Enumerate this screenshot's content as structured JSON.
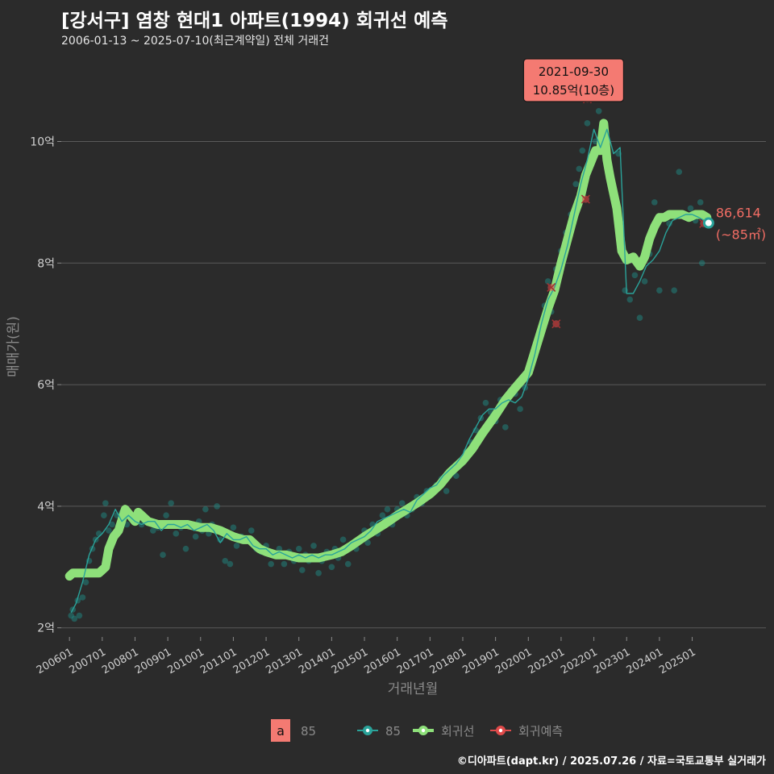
{
  "header": {
    "title": "[강서구] 염창 현대1 아파트(1994) 회귀선 예측",
    "subtitle": "2006-01-13 ~ 2025-07-10(최근계약일) 전체 거래건"
  },
  "footer": {
    "credit": "©디아파트(dapt.kr) / 2025.07.26 / 자료=국토교통부 실거래가"
  },
  "colors": {
    "background": "#2b2b2b",
    "grid": "#5a5a5a",
    "trade_points": "#1f8a84",
    "trade_line": "#2aa39a",
    "regression": "#8ee07a",
    "prediction": "#e04b4b",
    "annotation_fill": "#f47a72",
    "last_label": "#f26d64"
  },
  "chart_data": {
    "type": "line",
    "title": "[강서구] 염창 현대1 아파트(1994) 회귀선 예측",
    "xlabel": "거래년월",
    "ylabel": "매매가(원)",
    "x_range": [
      2005.75,
      2027.25
    ],
    "ylim": [
      1.85,
      11.2
    ],
    "y_ticks": [
      {
        "value": 2,
        "label": "2억"
      },
      {
        "value": 4,
        "label": "4억"
      },
      {
        "value": 6,
        "label": "6억"
      },
      {
        "value": 8,
        "label": "8억"
      },
      {
        "value": 10,
        "label": "10억"
      }
    ],
    "x_ticks": [
      {
        "value": 2006,
        "label": "200601"
      },
      {
        "value": 2007,
        "label": "200701"
      },
      {
        "value": 2008,
        "label": "200801"
      },
      {
        "value": 2009,
        "label": "200901"
      },
      {
        "value": 2010,
        "label": "201001"
      },
      {
        "value": 2011,
        "label": "201101"
      },
      {
        "value": 2012,
        "label": "201201"
      },
      {
        "value": 2013,
        "label": "201301"
      },
      {
        "value": 2014,
        "label": "201401"
      },
      {
        "value": 2015,
        "label": "201501"
      },
      {
        "value": 2016,
        "label": "201601"
      },
      {
        "value": 2017,
        "label": "201701"
      },
      {
        "value": 2018,
        "label": "201801"
      },
      {
        "value": 2019,
        "label": "201901"
      },
      {
        "value": 2020,
        "label": "202001"
      },
      {
        "value": 2021,
        "label": "202101"
      },
      {
        "value": 2022,
        "label": "202201"
      },
      {
        "value": 2023,
        "label": "202301"
      },
      {
        "value": 2024,
        "label": "202401"
      },
      {
        "value": 2025,
        "label": "202501"
      }
    ],
    "series": [
      {
        "name": "85",
        "kind": "trade_line",
        "x": [
          2006.05,
          2006.2,
          2006.4,
          2006.6,
          2006.8,
          2007.0,
          2007.2,
          2007.4,
          2007.6,
          2007.8,
          2008.0,
          2008.2,
          2008.4,
          2008.6,
          2008.8,
          2009.0,
          2009.2,
          2009.4,
          2009.6,
          2009.8,
          2010.0,
          2010.2,
          2010.4,
          2010.6,
          2010.8,
          2011.0,
          2011.2,
          2011.4,
          2011.6,
          2011.8,
          2012.0,
          2012.2,
          2012.4,
          2012.6,
          2012.8,
          2013.0,
          2013.2,
          2013.4,
          2013.6,
          2013.8,
          2014.0,
          2014.2,
          2014.4,
          2014.6,
          2014.8,
          2015.0,
          2015.2,
          2015.4,
          2015.6,
          2015.8,
          2016.0,
          2016.2,
          2016.4,
          2016.6,
          2016.8,
          2017.0,
          2017.2,
          2017.4,
          2017.6,
          2017.8,
          2018.0,
          2018.2,
          2018.4,
          2018.6,
          2018.8,
          2019.0,
          2019.2,
          2019.4,
          2019.6,
          2019.8,
          2020.0,
          2020.2,
          2020.4,
          2020.6,
          2020.8,
          2021.0,
          2021.2,
          2021.4,
          2021.6,
          2021.8,
          2022.0,
          2022.2,
          2022.4,
          2022.6,
          2022.8,
          2023.0,
          2023.2,
          2023.4,
          2023.6,
          2023.8,
          2024.0,
          2024.2,
          2024.4,
          2024.6,
          2024.8,
          2025.0,
          2025.2,
          2025.5
        ],
        "values": [
          2.25,
          2.4,
          2.75,
          3.2,
          3.45,
          3.55,
          3.7,
          3.95,
          3.75,
          3.85,
          3.75,
          3.7,
          3.75,
          3.75,
          3.6,
          3.7,
          3.7,
          3.65,
          3.7,
          3.6,
          3.65,
          3.7,
          3.6,
          3.4,
          3.55,
          3.45,
          3.45,
          3.5,
          3.35,
          3.3,
          3.3,
          3.2,
          3.25,
          3.2,
          3.15,
          3.2,
          3.15,
          3.2,
          3.15,
          3.2,
          3.2,
          3.25,
          3.3,
          3.4,
          3.45,
          3.5,
          3.6,
          3.75,
          3.8,
          3.85,
          3.9,
          3.95,
          3.9,
          4.1,
          4.2,
          4.3,
          4.35,
          4.5,
          4.6,
          4.7,
          4.85,
          5.1,
          5.3,
          5.5,
          5.6,
          5.6,
          5.7,
          5.75,
          5.7,
          5.8,
          6.1,
          6.5,
          7.0,
          7.4,
          7.6,
          7.9,
          8.3,
          8.8,
          9.3,
          9.7,
          10.2,
          9.9,
          10.2,
          9.8,
          9.9,
          7.5,
          7.5,
          7.7,
          7.95,
          8.05,
          8.2,
          8.5,
          8.7,
          8.75,
          8.8,
          8.8,
          8.75,
          8.66
        ]
      },
      {
        "name": "회귀선",
        "kind": "regression",
        "x": [
          2006.0,
          2006.1,
          2006.3,
          2006.6,
          2006.9,
          2007.1,
          2007.2,
          2007.35,
          2007.5,
          2007.7,
          2007.85,
          2008.0,
          2008.1,
          2008.2,
          2008.4,
          2008.7,
          2009.0,
          2009.3,
          2009.6,
          2010.0,
          2010.3,
          2010.6,
          2011.0,
          2011.3,
          2011.5,
          2011.8,
          2012.0,
          2012.3,
          2012.6,
          2013.0,
          2013.3,
          2013.6,
          2014.0,
          2014.3,
          2014.6,
          2015.0,
          2015.3,
          2015.6,
          2016.0,
          2016.3,
          2016.6,
          2017.0,
          2017.3,
          2017.6,
          2018.0,
          2018.3,
          2018.6,
          2019.0,
          2019.3,
          2019.6,
          2020.0,
          2020.2,
          2020.4,
          2020.6,
          2020.8,
          2021.0,
          2021.2,
          2021.4,
          2021.6,
          2021.75,
          2021.9,
          2022.05,
          2022.2,
          2022.3,
          2022.4,
          2022.5,
          2022.7,
          2022.85,
          2023.0,
          2023.2,
          2023.4,
          2023.55,
          2023.7,
          2023.85,
          2024.0,
          2024.15,
          2024.3,
          2024.5,
          2024.7,
          2024.9,
          2025.1,
          2025.3,
          2025.45
        ],
        "values": [
          2.85,
          2.9,
          2.9,
          2.9,
          2.9,
          3.0,
          3.3,
          3.5,
          3.6,
          3.95,
          3.85,
          3.75,
          3.9,
          3.85,
          3.75,
          3.7,
          3.7,
          3.7,
          3.7,
          3.65,
          3.65,
          3.6,
          3.5,
          3.45,
          3.45,
          3.3,
          3.25,
          3.2,
          3.2,
          3.15,
          3.15,
          3.15,
          3.2,
          3.25,
          3.35,
          3.5,
          3.6,
          3.7,
          3.85,
          3.95,
          4.05,
          4.2,
          4.35,
          4.55,
          4.75,
          4.95,
          5.2,
          5.5,
          5.75,
          5.95,
          6.2,
          6.55,
          6.9,
          7.25,
          7.55,
          8.0,
          8.4,
          8.8,
          9.1,
          9.45,
          9.65,
          9.85,
          9.85,
          10.3,
          9.7,
          9.4,
          8.9,
          8.2,
          8.05,
          8.1,
          7.95,
          8.1,
          8.4,
          8.6,
          8.75,
          8.75,
          8.8,
          8.8,
          8.8,
          8.75,
          8.8,
          8.8,
          8.75
        ]
      },
      {
        "name": "85",
        "kind": "trade_points",
        "points": [
          [
            2006.05,
            2.2
          ],
          [
            2006.1,
            2.3
          ],
          [
            2006.15,
            2.15
          ],
          [
            2006.25,
            2.45
          ],
          [
            2006.3,
            2.2
          ],
          [
            2006.4,
            2.5
          ],
          [
            2006.5,
            2.75
          ],
          [
            2006.6,
            3.1
          ],
          [
            2006.7,
            3.3
          ],
          [
            2006.8,
            3.45
          ],
          [
            2006.9,
            3.55
          ],
          [
            2007.05,
            3.85
          ],
          [
            2007.1,
            4.05
          ],
          [
            2007.2,
            3.6
          ],
          [
            2007.3,
            3.7
          ],
          [
            2007.45,
            3.85
          ],
          [
            2007.6,
            3.9
          ],
          [
            2007.75,
            3.7
          ],
          [
            2007.9,
            3.8
          ],
          [
            2008.05,
            3.85
          ],
          [
            2008.2,
            3.7
          ],
          [
            2008.4,
            3.75
          ],
          [
            2008.55,
            3.6
          ],
          [
            2008.7,
            3.65
          ],
          [
            2008.85,
            3.2
          ],
          [
            2008.95,
            3.85
          ],
          [
            2009.1,
            4.05
          ],
          [
            2009.25,
            3.55
          ],
          [
            2009.4,
            3.65
          ],
          [
            2009.55,
            3.3
          ],
          [
            2009.7,
            3.7
          ],
          [
            2009.85,
            3.5
          ],
          [
            2009.95,
            3.75
          ],
          [
            2010.05,
            3.6
          ],
          [
            2010.15,
            3.95
          ],
          [
            2010.25,
            3.55
          ],
          [
            2010.35,
            3.7
          ],
          [
            2010.5,
            4.0
          ],
          [
            2010.6,
            3.45
          ],
          [
            2010.75,
            3.1
          ],
          [
            2010.9,
            3.05
          ],
          [
            2011.0,
            3.65
          ],
          [
            2011.1,
            3.35
          ],
          [
            2011.25,
            3.5
          ],
          [
            2011.4,
            3.45
          ],
          [
            2011.55,
            3.6
          ],
          [
            2011.7,
            3.3
          ],
          [
            2011.85,
            3.25
          ],
          [
            2012.0,
            3.35
          ],
          [
            2012.15,
            3.05
          ],
          [
            2012.25,
            3.2
          ],
          [
            2012.4,
            3.3
          ],
          [
            2012.55,
            3.05
          ],
          [
            2012.7,
            3.25
          ],
          [
            2012.85,
            3.1
          ],
          [
            2013.0,
            3.3
          ],
          [
            2013.1,
            2.95
          ],
          [
            2013.2,
            3.2
          ],
          [
            2013.3,
            3.1
          ],
          [
            2013.45,
            3.35
          ],
          [
            2013.6,
            2.9
          ],
          [
            2013.7,
            3.1
          ],
          [
            2013.85,
            3.25
          ],
          [
            2014.0,
            3.0
          ],
          [
            2014.1,
            3.3
          ],
          [
            2014.2,
            3.15
          ],
          [
            2014.35,
            3.45
          ],
          [
            2014.5,
            3.05
          ],
          [
            2014.6,
            3.35
          ],
          [
            2014.75,
            3.3
          ],
          [
            2014.85,
            3.45
          ],
          [
            2015.0,
            3.6
          ],
          [
            2015.1,
            3.4
          ],
          [
            2015.25,
            3.7
          ],
          [
            2015.4,
            3.55
          ],
          [
            2015.55,
            3.85
          ],
          [
            2015.7,
            3.95
          ],
          [
            2015.85,
            3.7
          ],
          [
            2016.0,
            3.95
          ],
          [
            2016.15,
            4.05
          ],
          [
            2016.3,
            3.85
          ],
          [
            2016.45,
            3.95
          ],
          [
            2016.6,
            4.15
          ],
          [
            2016.75,
            4.05
          ],
          [
            2016.9,
            4.25
          ],
          [
            2017.05,
            4.2
          ],
          [
            2017.2,
            4.35
          ],
          [
            2017.35,
            4.45
          ],
          [
            2017.5,
            4.25
          ],
          [
            2017.65,
            4.6
          ],
          [
            2017.8,
            4.5
          ],
          [
            2017.95,
            4.75
          ],
          [
            2018.1,
            4.9
          ],
          [
            2018.25,
            5.05
          ],
          [
            2018.4,
            5.25
          ],
          [
            2018.55,
            5.45
          ],
          [
            2018.7,
            5.7
          ],
          [
            2018.85,
            5.55
          ],
          [
            2019.0,
            5.4
          ],
          [
            2019.15,
            5.75
          ],
          [
            2019.3,
            5.3
          ],
          [
            2019.45,
            5.9
          ],
          [
            2019.6,
            5.85
          ],
          [
            2019.75,
            5.6
          ],
          [
            2019.9,
            5.95
          ],
          [
            2020.05,
            6.3
          ],
          [
            2020.2,
            6.55
          ],
          [
            2020.35,
            6.85
          ],
          [
            2020.5,
            7.3
          ],
          [
            2020.6,
            7.7
          ],
          [
            2020.7,
            7.2
          ],
          [
            2020.85,
            7.9
          ],
          [
            2021.0,
            8.2
          ],
          [
            2021.15,
            8.5
          ],
          [
            2021.3,
            8.8
          ],
          [
            2021.45,
            9.3
          ],
          [
            2021.55,
            9.55
          ],
          [
            2021.65,
            9.85
          ],
          [
            2021.8,
            10.3
          ],
          [
            2021.9,
            9.7
          ],
          [
            2022.05,
            10.0
          ],
          [
            2022.15,
            10.5
          ],
          [
            2022.25,
            9.9
          ],
          [
            2022.4,
            9.65
          ],
          [
            2022.55,
            9.3
          ],
          [
            2022.75,
            9.8
          ],
          [
            2022.95,
            7.55
          ],
          [
            2023.1,
            7.4
          ],
          [
            2023.25,
            7.8
          ],
          [
            2023.4,
            7.1
          ],
          [
            2023.55,
            7.7
          ],
          [
            2023.7,
            8.15
          ],
          [
            2023.85,
            9.0
          ],
          [
            2024.0,
            7.55
          ],
          [
            2024.1,
            8.75
          ],
          [
            2024.3,
            8.65
          ],
          [
            2024.45,
            7.55
          ],
          [
            2024.6,
            9.5
          ],
          [
            2024.75,
            8.8
          ],
          [
            2024.95,
            8.9
          ],
          [
            2025.1,
            8.7
          ],
          [
            2025.25,
            9.0
          ],
          [
            2025.3,
            8.0
          ],
          [
            2025.4,
            8.75
          ]
        ]
      },
      {
        "name": "회귀예측",
        "kind": "prediction",
        "points": [
          [
            2020.7,
            7.6
          ],
          [
            2020.85,
            7.0
          ],
          [
            2021.75,
            9.05
          ],
          [
            2021.8,
            10.7
          ],
          [
            2025.35,
            8.65
          ]
        ]
      }
    ],
    "annotation": {
      "x": 2021.75,
      "y": 10.85,
      "line1": "2021-09-30",
      "line2": "10.85억(10층)"
    },
    "last_point": {
      "x": 2025.5,
      "y": 8.66,
      "line1": "86,614",
      "line2": "(~85㎡)"
    },
    "legend": {
      "position": "bottom",
      "area_key": "a",
      "area_label": "85",
      "items": [
        {
          "label": "85",
          "kind": "trade_line"
        },
        {
          "label": "회귀선",
          "kind": "regression"
        },
        {
          "label": "회귀예측",
          "kind": "prediction"
        }
      ]
    }
  }
}
